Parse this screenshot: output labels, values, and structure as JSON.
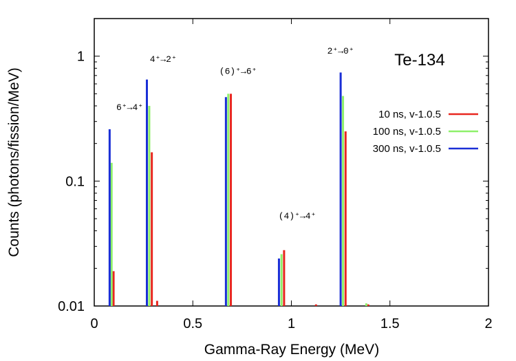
{
  "chart_data": {
    "type": "bar",
    "title": "Te-134",
    "xlabel": "Gamma-Ray Energy (MeV)",
    "ylabel": "Counts (photons/fission/MeV)",
    "xlim": [
      0,
      2
    ],
    "ylim": [
      0.01,
      2
    ],
    "yscale": "log",
    "grid": false,
    "legend_position": "right",
    "x_ticks": [
      {
        "value": 0,
        "label": "0"
      },
      {
        "value": 0.5,
        "label": "0.5"
      },
      {
        "value": 1,
        "label": "1"
      },
      {
        "value": 1.5,
        "label": "1.5"
      },
      {
        "value": 2,
        "label": "2"
      }
    ],
    "y_ticks": [
      {
        "value": 0.01,
        "label": "0.01"
      },
      {
        "value": 0.1,
        "label": "0.1"
      },
      {
        "value": 1,
        "label": "1"
      }
    ],
    "series": [
      {
        "name": "10 ns, v-1.0.5",
        "color": "#e8261f",
        "points": [
          {
            "x": 0.098,
            "y": 0.019
          },
          {
            "x": 0.292,
            "y": 0.17
          },
          {
            "x": 0.319,
            "y": 0.011
          },
          {
            "x": 0.693,
            "y": 0.5
          },
          {
            "x": 0.963,
            "y": 0.028
          },
          {
            "x": 1.125,
            "y": 0.0103
          },
          {
            "x": 1.275,
            "y": 0.25
          },
          {
            "x": 1.39,
            "y": 0.0103
          }
        ]
      },
      {
        "name": "100 ns, v-1.0.5",
        "color": "#8ef06a",
        "points": [
          {
            "x": 0.088,
            "y": 0.14
          },
          {
            "x": 0.279,
            "y": 0.4
          },
          {
            "x": 0.68,
            "y": 0.5
          },
          {
            "x": 0.95,
            "y": 0.026
          },
          {
            "x": 1.262,
            "y": 0.48
          },
          {
            "x": 1.38,
            "y": 0.0105
          }
        ]
      },
      {
        "name": "300 ns, v-1.0.5",
        "color": "#1a2fd6",
        "points": [
          {
            "x": 0.078,
            "y": 0.26
          },
          {
            "x": 0.267,
            "y": 0.65
          },
          {
            "x": 0.668,
            "y": 0.47
          },
          {
            "x": 0.937,
            "y": 0.024
          },
          {
            "x": 1.25,
            "y": 0.74
          }
        ]
      }
    ],
    "annotations": [
      {
        "text": "6⁺→4⁺",
        "x": 0.18,
        "y": 0.37
      },
      {
        "text": "4⁺→2⁺",
        "x": 0.35,
        "y": 0.9
      },
      {
        "text": "(6)⁺→6⁺",
        "x": 0.73,
        "y": 0.72
      },
      {
        "text": "(4)⁺→4⁺",
        "x": 1.03,
        "y": 0.05
      },
      {
        "text": "2⁺→0⁺",
        "x": 1.25,
        "y": 1.05
      }
    ]
  }
}
